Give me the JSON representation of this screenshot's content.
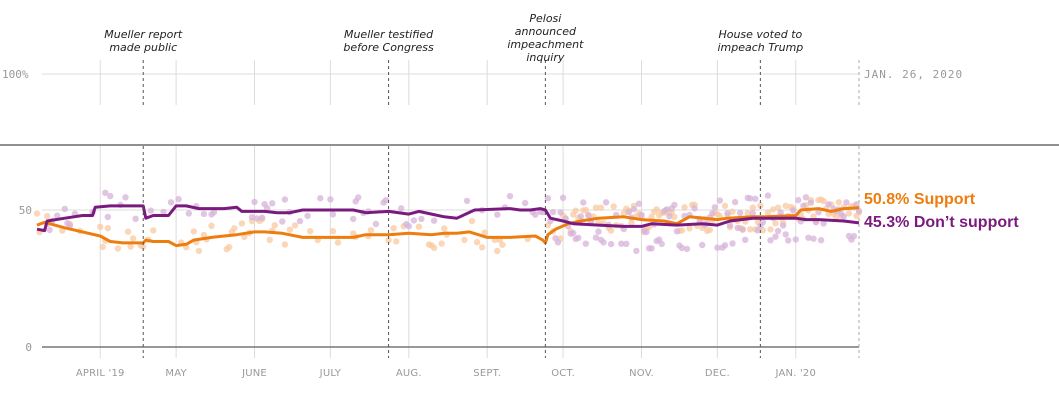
{
  "chart_data": {
    "type": "line",
    "title": "",
    "date_label": "JAN. 26, 2020",
    "top_axis_label": "100%",
    "y_ticks": [
      0,
      50
    ],
    "y_tick_labels": [
      "0",
      "50"
    ],
    "ylim": [
      0,
      60
    ],
    "x_start": "2019-03-07",
    "x_end": "2020-01-26",
    "x_ticks": [
      {
        "date": "2019-04-01",
        "label": "APRIL '19"
      },
      {
        "date": "2019-05-01",
        "label": "MAY"
      },
      {
        "date": "2019-06-01",
        "label": "JUNE"
      },
      {
        "date": "2019-07-01",
        "label": "JULY"
      },
      {
        "date": "2019-08-01",
        "label": "AUG."
      },
      {
        "date": "2019-09-01",
        "label": "SEPT."
      },
      {
        "date": "2019-10-01",
        "label": "OCT."
      },
      {
        "date": "2019-11-01",
        "label": "NOV."
      },
      {
        "date": "2019-12-01",
        "label": "DEC."
      },
      {
        "date": "2020-01-01",
        "label": "JAN. '20"
      }
    ],
    "events": [
      {
        "date": "2019-04-18",
        "lines": [
          "Mueller report",
          "made public"
        ]
      },
      {
        "date": "2019-07-24",
        "lines": [
          "Mueller testified",
          "before Congress"
        ]
      },
      {
        "date": "2019-09-24",
        "lines": [
          "Pelosi",
          "announced",
          "impeachment",
          "inquiry"
        ]
      },
      {
        "date": "2019-12-18",
        "lines": [
          "House voted to",
          "impeach Trump"
        ]
      }
    ],
    "series": [
      {
        "name": "Support",
        "end_label": "50.8% Support",
        "color": "#ed7d0e",
        "dot_color": "#f8c9a0",
        "points": [
          [
            "2019-03-07",
            44.5
          ],
          [
            "2019-03-10",
            45.5
          ],
          [
            "2019-03-12",
            45
          ],
          [
            "2019-03-18",
            43.5
          ],
          [
            "2019-03-25",
            42
          ],
          [
            "2019-04-01",
            40.5
          ],
          [
            "2019-04-05",
            38.5
          ],
          [
            "2019-04-10",
            38
          ],
          [
            "2019-04-18",
            38
          ],
          [
            "2019-04-19",
            39
          ],
          [
            "2019-04-22",
            38.5
          ],
          [
            "2019-04-28",
            38.5
          ],
          [
            "2019-05-01",
            37
          ],
          [
            "2019-05-05",
            37.5
          ],
          [
            "2019-05-08",
            39
          ],
          [
            "2019-05-15",
            40
          ],
          [
            "2019-05-20",
            40.5
          ],
          [
            "2019-05-25",
            41
          ],
          [
            "2019-06-01",
            42
          ],
          [
            "2019-06-05",
            42
          ],
          [
            "2019-06-12",
            41.5
          ],
          [
            "2019-06-20",
            40
          ],
          [
            "2019-07-01",
            40
          ],
          [
            "2019-07-10",
            40
          ],
          [
            "2019-07-15",
            41
          ],
          [
            "2019-07-24",
            41
          ],
          [
            "2019-08-01",
            41.5
          ],
          [
            "2019-08-10",
            41
          ],
          [
            "2019-08-15",
            41.5
          ],
          [
            "2019-08-20",
            41.5
          ],
          [
            "2019-08-25",
            42
          ],
          [
            "2019-09-01",
            40
          ],
          [
            "2019-09-10",
            40
          ],
          [
            "2019-09-20",
            40.5
          ],
          [
            "2019-09-23",
            39
          ],
          [
            "2019-09-24",
            38
          ],
          [
            "2019-09-25",
            41
          ],
          [
            "2019-09-28",
            43
          ],
          [
            "2019-10-03",
            45
          ],
          [
            "2019-10-08",
            46
          ],
          [
            "2019-10-15",
            47
          ],
          [
            "2019-10-25",
            47.5
          ],
          [
            "2019-11-01",
            46.5
          ],
          [
            "2019-11-10",
            46
          ],
          [
            "2019-11-15",
            45
          ],
          [
            "2019-11-20",
            47.5
          ],
          [
            "2019-12-01",
            46.5
          ],
          [
            "2019-12-05",
            47
          ],
          [
            "2019-12-15",
            47.5
          ],
          [
            "2019-12-20",
            47.5
          ],
          [
            "2020-01-01",
            48
          ],
          [
            "2020-01-03",
            50
          ],
          [
            "2020-01-10",
            50.5
          ],
          [
            "2020-01-15",
            49.5
          ],
          [
            "2020-01-20",
            50.5
          ],
          [
            "2020-01-26",
            50.8
          ]
        ]
      },
      {
        "name": "Don't support",
        "end_label": "45.3% Don’t support",
        "color": "#7b1a7e",
        "dot_color": "#d6b3d8",
        "points": [
          [
            "2019-03-07",
            43
          ],
          [
            "2019-03-10",
            42.5
          ],
          [
            "2019-03-11",
            46
          ],
          [
            "2019-03-18",
            47
          ],
          [
            "2019-03-25",
            48
          ],
          [
            "2019-03-29",
            48
          ],
          [
            "2019-03-30",
            51
          ],
          [
            "2019-04-05",
            51.5
          ],
          [
            "2019-04-10",
            51.5
          ],
          [
            "2019-04-18",
            51.5
          ],
          [
            "2019-04-19",
            47
          ],
          [
            "2019-04-22",
            48
          ],
          [
            "2019-04-28",
            48
          ],
          [
            "2019-05-01",
            51.5
          ],
          [
            "2019-05-05",
            51.5
          ],
          [
            "2019-05-10",
            50.5
          ],
          [
            "2019-05-20",
            50.5
          ],
          [
            "2019-05-25",
            51
          ],
          [
            "2019-05-27",
            49.5
          ],
          [
            "2019-06-05",
            49.5
          ],
          [
            "2019-06-10",
            49
          ],
          [
            "2019-06-15",
            49
          ],
          [
            "2019-06-20",
            50
          ],
          [
            "2019-07-01",
            50
          ],
          [
            "2019-07-10",
            50
          ],
          [
            "2019-07-15",
            49
          ],
          [
            "2019-07-24",
            49.5
          ],
          [
            "2019-08-01",
            48.5
          ],
          [
            "2019-08-05",
            49.5
          ],
          [
            "2019-08-10",
            48.5
          ],
          [
            "2019-08-15",
            47.5
          ],
          [
            "2019-08-20",
            47
          ],
          [
            "2019-08-27",
            50
          ],
          [
            "2019-09-10",
            50.5
          ],
          [
            "2019-09-14",
            50
          ],
          [
            "2019-09-18",
            50
          ],
          [
            "2019-09-22",
            50.5
          ],
          [
            "2019-09-24",
            50
          ],
          [
            "2019-09-26",
            47
          ],
          [
            "2019-10-01",
            46
          ],
          [
            "2019-10-05",
            45
          ],
          [
            "2019-10-15",
            44.5
          ],
          [
            "2019-10-25",
            44
          ],
          [
            "2019-11-01",
            44
          ],
          [
            "2019-11-05",
            45
          ],
          [
            "2019-11-15",
            44.5
          ],
          [
            "2019-11-25",
            45
          ],
          [
            "2019-12-01",
            44.5
          ],
          [
            "2019-12-06",
            46
          ],
          [
            "2019-12-15",
            47
          ],
          [
            "2019-12-20",
            47
          ],
          [
            "2020-01-01",
            47
          ],
          [
            "2020-01-05",
            46.5
          ],
          [
            "2020-01-10",
            46.5
          ],
          [
            "2020-01-20",
            46
          ],
          [
            "2020-01-26",
            45.3
          ]
        ]
      }
    ]
  }
}
